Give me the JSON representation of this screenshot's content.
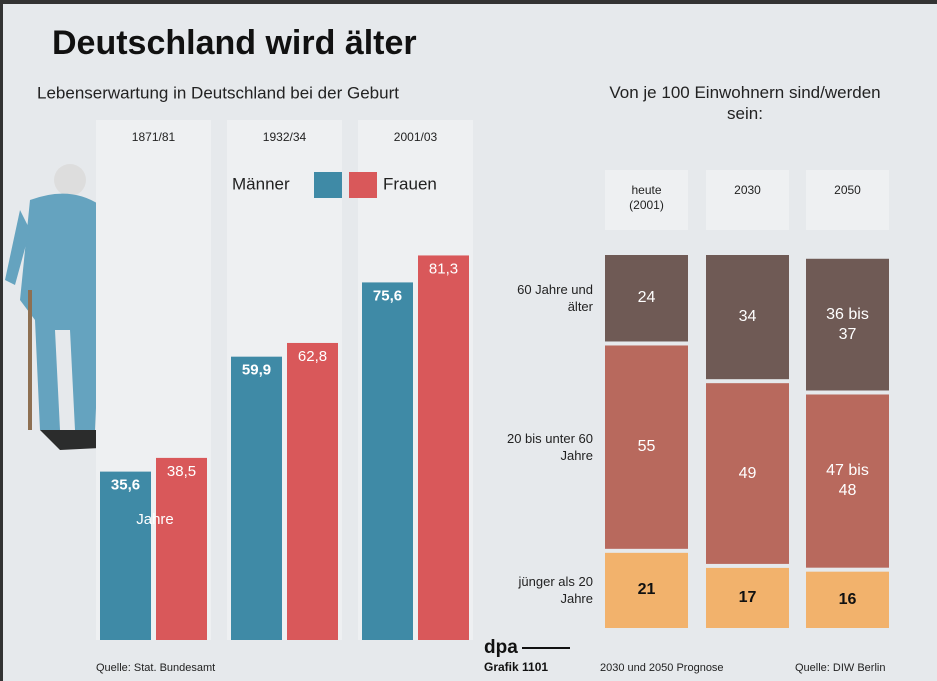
{
  "header": {
    "title": "Deutschland wird älter"
  },
  "chart_data": [
    {
      "type": "bar",
      "title": "Lebenserwartung in Deutschland bei der Geburt",
      "categories": [
        "1871/81",
        "1932/34",
        "2001/03"
      ],
      "series": [
        {
          "name": "Männer",
          "color": "#3f8aa6",
          "values": [
            35.6,
            59.9,
            75.6
          ],
          "value_labels": [
            "35,6",
            "59,9",
            "75,6"
          ]
        },
        {
          "name": "Frauen",
          "color": "#d9585a",
          "values": [
            38.5,
            62.8,
            81.3
          ],
          "value_labels": [
            "38,5",
            "62,8",
            "81,3"
          ]
        }
      ],
      "annotation": "Jahre"
    },
    {
      "type": "stacked-bar",
      "title": "Von je 100 Einwohnern sind/werden sein:",
      "categories": [
        "heute (2001)",
        "2030",
        "2050"
      ],
      "series": [
        {
          "name": "jünger als 20 Jahre",
          "color": "#f2b26c",
          "values": [
            21,
            17,
            16
          ],
          "value_labels": [
            "21",
            "17",
            "16"
          ]
        },
        {
          "name": "20 bis unter 60 Jahre",
          "color": "#b8695d",
          "values": [
            55,
            49,
            47
          ],
          "value_labels": [
            "55",
            "49",
            "47 bis 48"
          ]
        },
        {
          "name": "60 Jahre und älter",
          "color": "#6f5a55",
          "values": [
            24,
            34,
            36
          ],
          "value_labels": [
            "24",
            "34",
            "36 bis 37"
          ]
        }
      ]
    }
  ],
  "footer": {
    "source_left": "Quelle: Stat. Bundesamt",
    "agency": "dpa",
    "graphic": "Grafik 1101",
    "forecast": "2030 und 2050 Prognose",
    "source_right": "Quelle: DIW Berlin"
  }
}
